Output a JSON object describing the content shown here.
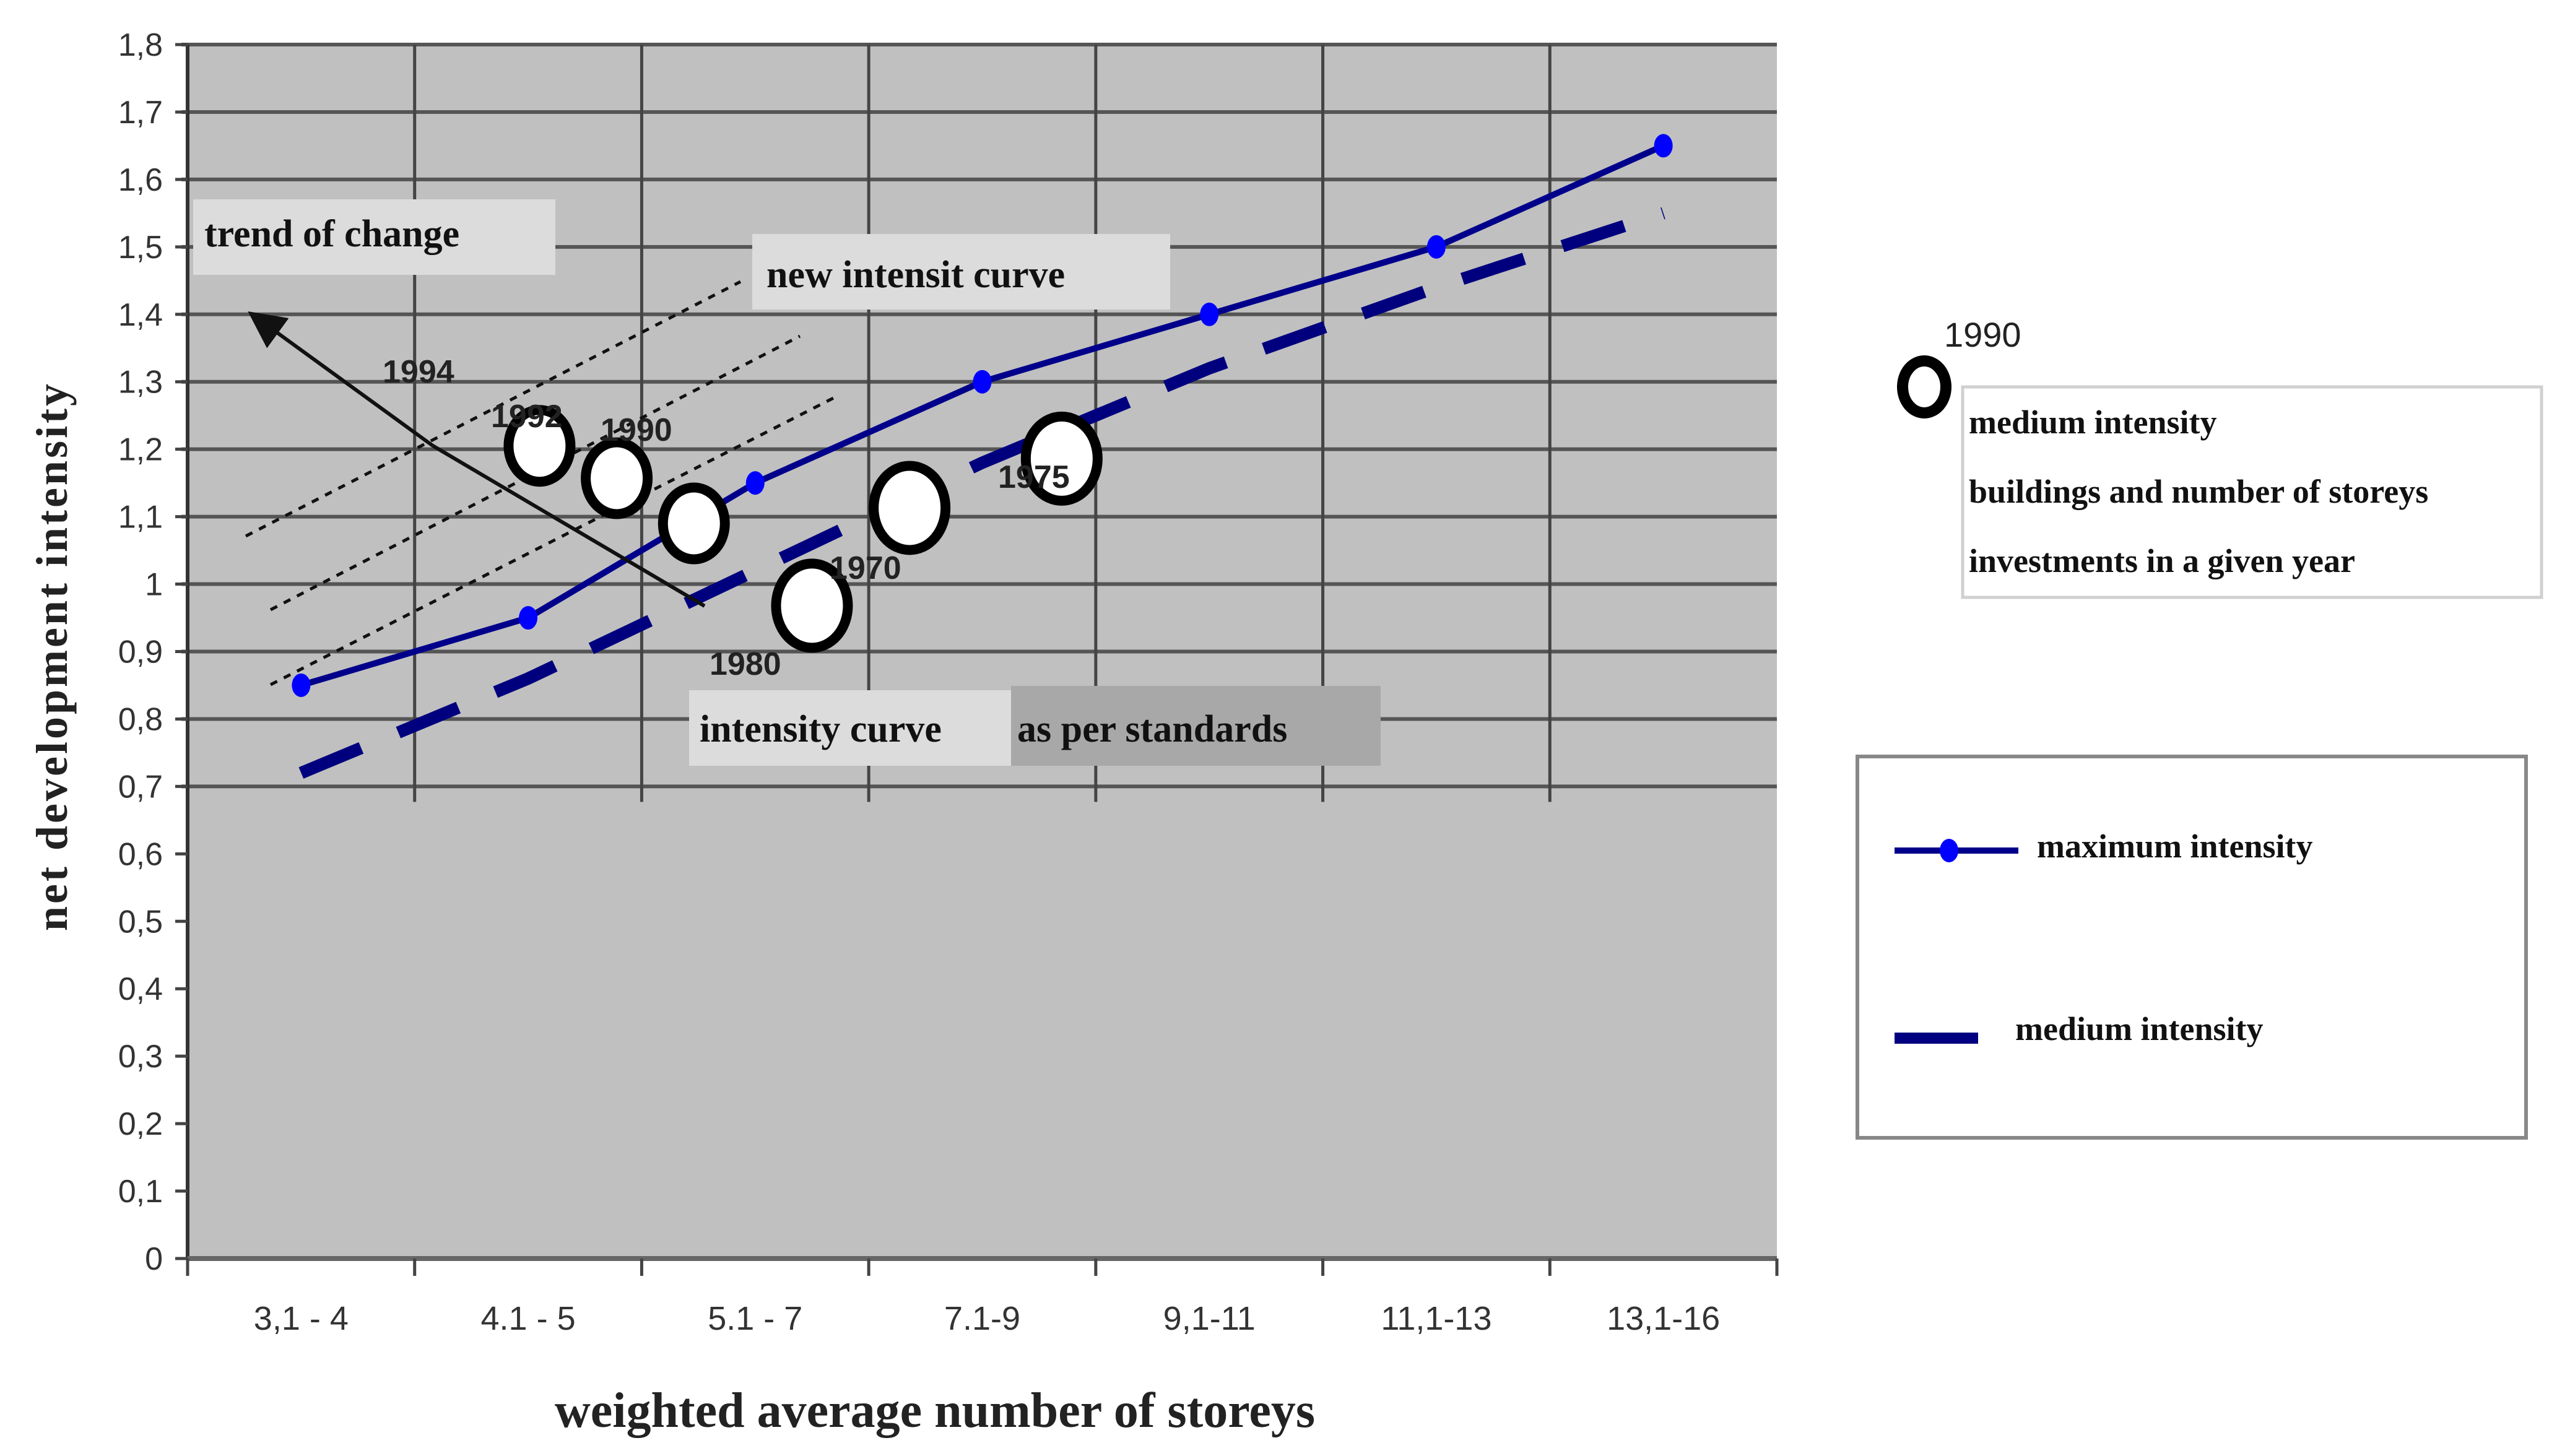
{
  "chart_data": {
    "type": "line",
    "title": "",
    "xlabel": "weighted average number of storeys",
    "ylabel": "net development intensity",
    "categories": [
      "3,1 - 4",
      "4.1 - 5",
      "5.1 - 7",
      "7.1-9",
      "9,1-11",
      "11,1-13",
      "13,1-16"
    ],
    "ylim": [
      0,
      1.8
    ],
    "yticks": [
      "0",
      "0,1",
      "0,2",
      "0,3",
      "0,4",
      "0,5",
      "0,6",
      "0,7",
      "0,8",
      "0,9",
      "1",
      "1,1",
      "1,2",
      "1,3",
      "1,4",
      "1,5",
      "1,6",
      "1,7",
      "1,8"
    ],
    "grid": "on (from 0.7 to 1.8 only)",
    "series": [
      {
        "name": "maximum intensity",
        "style": "solid line with circle markers",
        "color": "#00008b",
        "marker_color": "#0000ff",
        "values": [
          0.85,
          0.95,
          1.15,
          1.3,
          1.4,
          1.5,
          1.65
        ]
      },
      {
        "name": "medium intensity",
        "style": "thick dashed line",
        "color": "#00007f",
        "values": [
          0.72,
          0.86,
          1.02,
          1.18,
          1.32,
          1.44,
          1.55
        ]
      }
    ],
    "year_points": [
      {
        "year": "1994",
        "x_pos": 1.55,
        "y": 1.205
      },
      {
        "year": "1992",
        "x_pos": 1.89,
        "y": 1.157
      },
      {
        "year": "1990",
        "x_pos": 2.23,
        "y": 1.09
      },
      {
        "year": "1980",
        "x_pos": 2.75,
        "y": 0.968
      },
      {
        "year": "1970",
        "x_pos": 3.18,
        "y": 1.113
      },
      {
        "year": "1975",
        "x_pos": 3.85,
        "y": 1.186
      }
    ],
    "annotations": [
      "trend of change",
      "new intensit curve",
      "intensity curve as per standards"
    ],
    "legend_position": "right"
  },
  "annotations": {
    "trend_of_change": "trend of change",
    "new_curve": "new intensit curve",
    "standards_curve_part1": "intensity curve",
    "standards_curve_part2": "as per standards"
  },
  "year_labels": {
    "y1994": "1994",
    "y1992": "1992",
    "y1990": "1990",
    "y1980": "1980",
    "y1970": "1970",
    "y1975": "1975"
  },
  "circle_legend": {
    "year": "1990",
    "lines": [
      "medium intensity",
      "buildings and number of storeys",
      "investments in a given year"
    ]
  },
  "series_legend": {
    "items": [
      {
        "label": "maximum intensity"
      },
      {
        "label": "medium intensity"
      }
    ]
  },
  "colors": {
    "plot_bg": "#c0c0c0",
    "grid": "#555555",
    "max_line": "#00008b",
    "max_marker": "#0000ff",
    "medium_line": "#000080",
    "annotation_bg": "#dcdcdc",
    "annotation_bg_dark": "#a8a8a8"
  }
}
